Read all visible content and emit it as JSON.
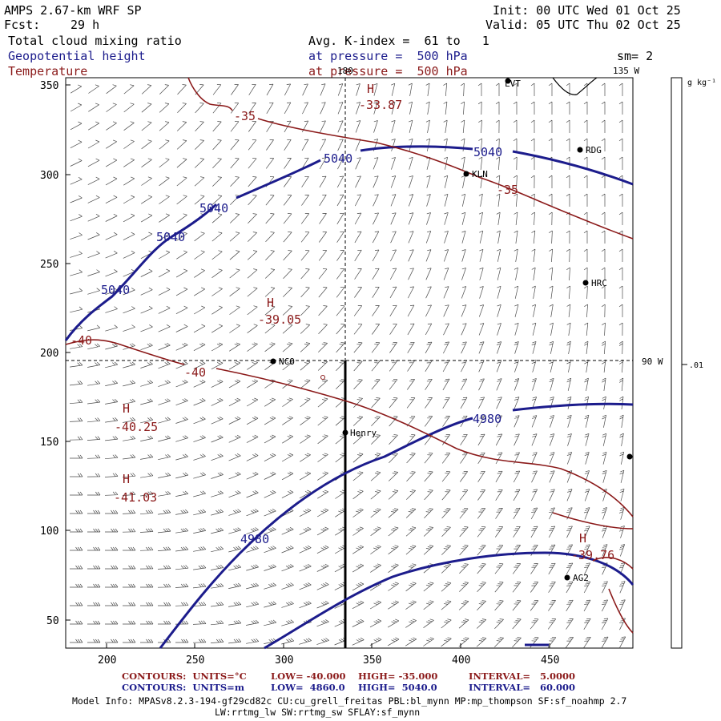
{
  "header": {
    "model": "AMPS 2.67-km WRF SP",
    "fcst_label": "Fcst:",
    "fcst_value": "29 h",
    "init": "Init: 00 UTC Wed 01 Oct 25",
    "valid": "Valid: 05 UTC Thu 02 Oct 25",
    "field1": "Total cloud mixing ratio",
    "field2": "Geopotential height",
    "field3": "Temperature",
    "avg": "Avg. K-index =  61 to   1",
    "pressure1": "at pressure =  500 hPa",
    "pressure2": "at pressure =  500 hPa",
    "sm": "sm= 2"
  },
  "colors": {
    "height": "#1c1c8c",
    "temperature": "#8b1a1a",
    "barbs": "#000000"
  },
  "map": {
    "lon_labels": [
      "180",
      "135 W",
      "90 W"
    ],
    "stations": [
      "LVT",
      "RDG",
      "KLN",
      "HRC",
      "NCO",
      "Henry",
      "AG2"
    ],
    "height_labels": [
      "5040",
      "5040",
      "5040",
      "5040",
      "5040",
      "4980",
      "4980"
    ],
    "temp_labels": [
      "-35",
      "-35",
      "-40",
      "-40"
    ],
    "extrema": [
      {
        "type": "H",
        "value": "-33.87"
      },
      {
        "type": "H",
        "value": "-39.05"
      },
      {
        "type": "H",
        "value": "-40.25"
      },
      {
        "type": "H",
        "value": "-41.03"
      },
      {
        "type": "H",
        "value": "-39.76"
      }
    ],
    "x_ticks": [
      "200",
      "250",
      "300",
      "350",
      "400",
      "450"
    ],
    "y_ticks": [
      "350",
      "300",
      "250",
      "200",
      "150",
      "100",
      "50"
    ]
  },
  "colorbar": {
    "unit": "g kg⁻¹",
    "value": ".01"
  },
  "footer": {
    "line1_label": "CONTOURS:  UNITS=°C",
    "line1_low": "LOW= -40.000",
    "line1_high": "HIGH= -35.000",
    "line1_interval": "INTERVAL=   5.0000",
    "line2_label": "CONTOURS:  UNITS=m",
    "line2_low": "LOW=  4860.0",
    "line2_high": "HIGH=  5040.0",
    "line2_interval": "INTERVAL=   60.000",
    "model_info": "Model Info: MPASv8.2.3-194-gf29cd82c CU:cu_grell_freitas PBL:bl_mynn MP:mp_thompson SF:sf_noahmp 2.7",
    "model_info2": "LW:rrtmg_lw SW:rrtmg_sw SFLAY:sf_mynn"
  }
}
